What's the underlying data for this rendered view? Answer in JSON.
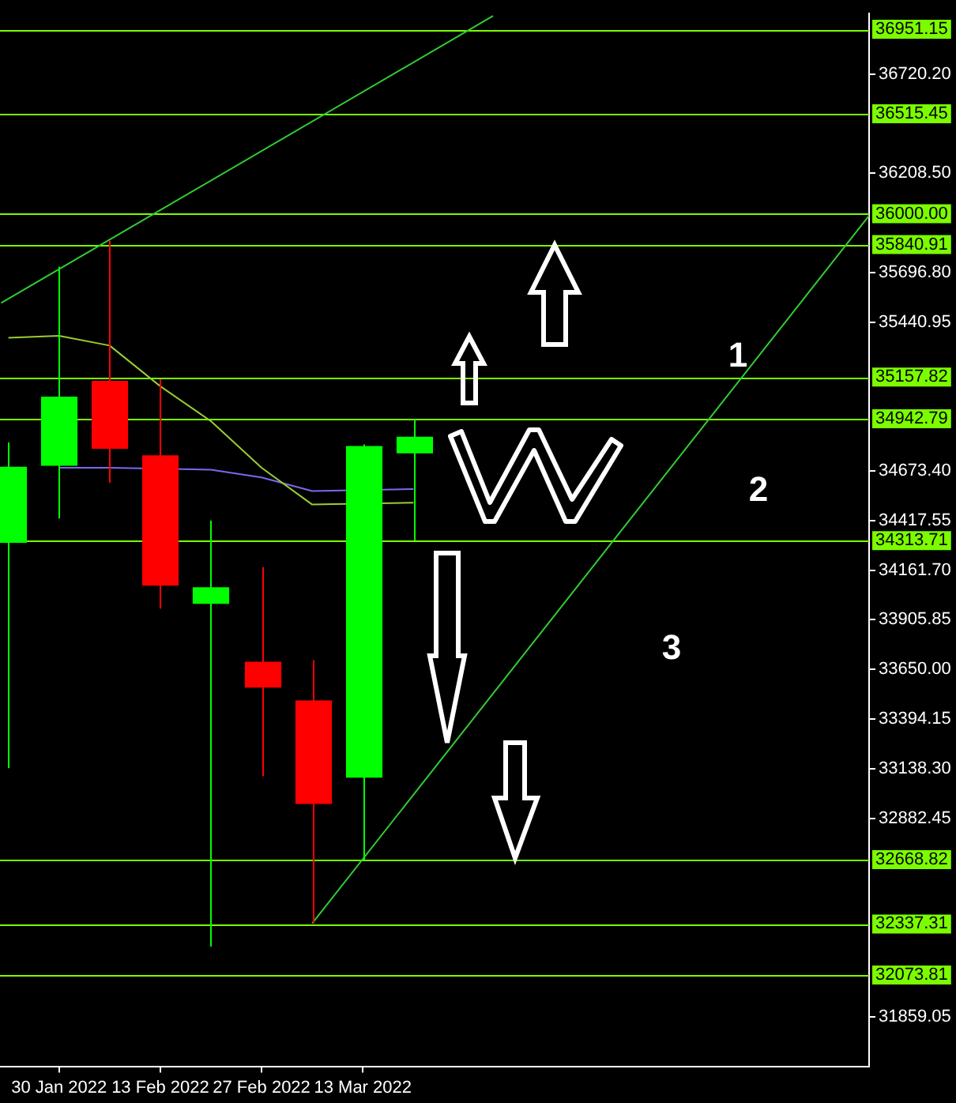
{
  "chart_data": {
    "type": "candlestick",
    "x": [
      "2022-01-23",
      "2022-01-30",
      "2022-02-06",
      "2022-02-13",
      "2022-02-20",
      "2022-02-27",
      "2022-03-06",
      "2022-03-13",
      "2022-03-20"
    ],
    "ohlc": [
      [
        34303,
        34820,
        33141,
        34695
      ],
      [
        34700,
        35727,
        34428,
        35057
      ],
      [
        35138,
        35860,
        34612,
        34788
      ],
      [
        34754,
        35146,
        33964,
        34082
      ],
      [
        33988,
        34418,
        32221,
        34074
      ],
      [
        33690,
        34178,
        33100,
        33556
      ],
      [
        33490,
        33698,
        32340,
        32956
      ],
      [
        33092,
        34810,
        32666,
        34802
      ],
      [
        34764,
        34940,
        34314,
        34850
      ]
    ],
    "colors": [
      "#00ff00",
      "#00ff00",
      "#ff0000",
      "#ff0000",
      "#00ff00",
      "#ff0000",
      "#ff0000",
      "#00ff00",
      "#00ff00"
    ],
    "series": [
      {
        "type": "line",
        "color": "#9acd32",
        "x": [
          "2022-01-23",
          "2022-01-30",
          "2022-02-06",
          "2022-02-13",
          "2022-02-20",
          "2022-02-27",
          "2022-03-06",
          "2022-03-13",
          "2022-03-20"
        ],
        "values": [
          35360,
          35370,
          35320,
          35110,
          34930,
          34690,
          34500,
          null,
          34510
        ]
      },
      {
        "type": "line",
        "color": "#7b68ee",
        "x": [
          "2022-01-30",
          "2022-02-06",
          "2022-02-13",
          "2022-02-20",
          "2022-02-27",
          "2022-03-06",
          "2022-03-13",
          "2022-03-20"
        ],
        "values": [
          34690,
          34690,
          null,
          34680,
          34640,
          34570,
          null,
          34580
        ]
      },
      {
        "type": "line",
        "color": "#32cd32",
        "x": [
          "2022-01-22",
          "2022-03-31"
        ],
        "values": [
          35540,
          37020
        ]
      },
      {
        "type": "line",
        "color": "#32cd32",
        "x": [
          "2022-03-06",
          "2022-05-22"
        ],
        "values": [
          32340,
          35990
        ]
      }
    ],
    "ref_lines": [
      {
        "axis": "y",
        "value": 36951.15,
        "label": "36951.15",
        "color": "#7cfc00"
      },
      {
        "axis": "y",
        "value": 36515.45,
        "label": "36515.45",
        "color": "#7cfc00"
      },
      {
        "axis": "y",
        "value": 36000.0,
        "label": "36000.00",
        "color": "#7cfc00"
      },
      {
        "axis": "y",
        "value": 35840.91,
        "label": "35840.91",
        "color": "#7cfc00"
      },
      {
        "axis": "y",
        "value": 35157.82,
        "label": "35157.82",
        "color": "#7cfc00"
      },
      {
        "axis": "y",
        "value": 34942.79,
        "label": "34942.79",
        "color": "#7cfc00"
      },
      {
        "axis": "y",
        "value": 34313.71,
        "label": "34313.71",
        "color": "#7cfc00"
      },
      {
        "axis": "y",
        "value": 32668.82,
        "label": "32668.82",
        "color": "#7cfc00"
      },
      {
        "axis": "y",
        "value": 32337.31,
        "label": "32337.31",
        "color": "#7cfc00"
      },
      {
        "axis": "y",
        "value": 32073.81,
        "label": "32073.81",
        "color": "#7cfc00"
      }
    ],
    "annotations": [
      "1",
      "2",
      "3"
    ],
    "xlim": [
      "2022-01-21T20:00",
      "2022-05-22"
    ],
    "xticks": [
      {
        "value": "2022-01-30",
        "label": "30 Jan 2022"
      },
      {
        "value": "2022-02-13",
        "label": "13 Feb 2022"
      },
      {
        "value": "2022-02-27",
        "label": "27 Feb 2022"
      },
      {
        "value": "2022-03-13",
        "label": "13 Mar 2022"
      }
    ],
    "ylim": [
      31603,
      37032
    ],
    "yticks": [
      {
        "value": 36720.2,
        "label": "36720.20"
      },
      {
        "value": 36208.5,
        "label": "36208.50"
      },
      {
        "value": 35696.8,
        "label": "35696.80"
      },
      {
        "value": 35440.95,
        "label": "35440.95"
      },
      {
        "value": 34673.4,
        "label": "34673.40"
      },
      {
        "value": 34417.55,
        "label": "34417.55"
      },
      {
        "value": 34161.7,
        "label": "34161.70"
      },
      {
        "value": 33905.85,
        "label": "33905.85"
      },
      {
        "value": 33650.0,
        "label": "33650.00"
      },
      {
        "value": 33394.15,
        "label": "33394.15"
      },
      {
        "value": 33138.3,
        "label": "33138.30"
      },
      {
        "value": 32882.45,
        "label": "32882.45"
      },
      {
        "value": 31859.05,
        "label": "31859.05"
      }
    ],
    "grid": false,
    "legend": false
  }
}
